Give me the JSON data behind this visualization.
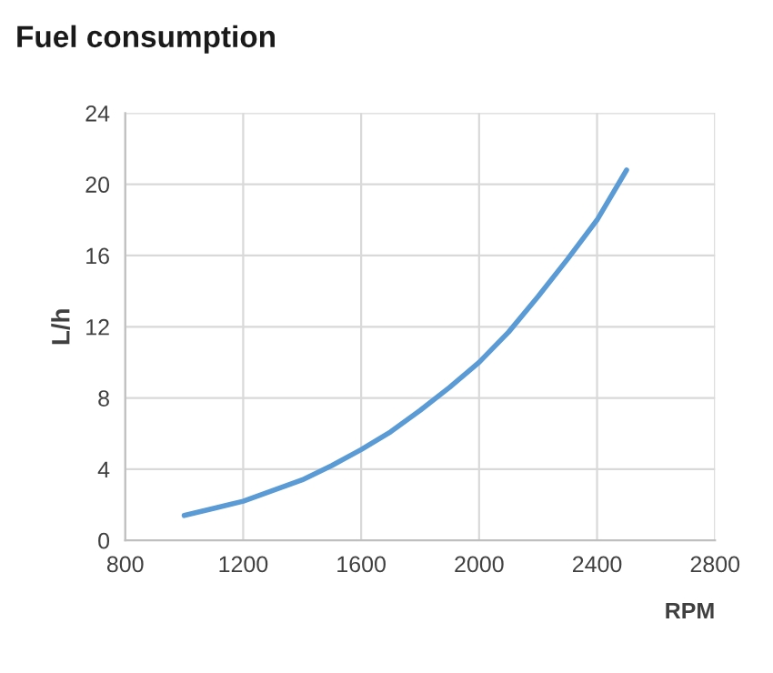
{
  "chart_data": {
    "type": "line",
    "title": "Fuel consumption",
    "xlabel": "RPM",
    "ylabel": "L/h",
    "x": [
      1000,
      1100,
      1200,
      1300,
      1400,
      1500,
      1600,
      1700,
      1800,
      1900,
      2000,
      2100,
      2200,
      2300,
      2400,
      2500
    ],
    "series": [
      {
        "color": "#5b9bd5",
        "values": [
          1.4,
          1.8,
          2.2,
          2.8,
          3.4,
          4.2,
          5.1,
          6.1,
          7.3,
          8.6,
          10.0,
          11.7,
          13.7,
          15.8,
          18.0,
          20.8
        ]
      }
    ],
    "xlim": [
      800,
      2800
    ],
    "xticks": [
      800,
      1200,
      1600,
      2000,
      2400,
      2800
    ],
    "ylim": [
      0,
      24
    ],
    "yticks": [
      0,
      4,
      8,
      12,
      16,
      20,
      24
    ],
    "grid": true,
    "marker": "none",
    "line_style": "solid"
  }
}
